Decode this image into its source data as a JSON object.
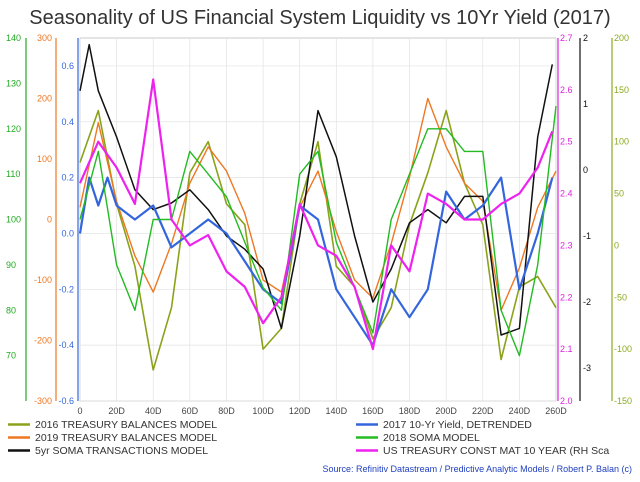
{
  "chart_data": {
    "type": "line",
    "title": "Seasonality of US Financial System Liquidity vs 10Yr Yield (2017)",
    "source": "Source: Refinitiv Datastream / Predictive Analytic Models / Robert P. Balan (c)",
    "x_axis": {
      "range": [
        0,
        260
      ],
      "ticks": [
        "0",
        "20D",
        "40D",
        "60D",
        "80D",
        "100D",
        "120D",
        "140D",
        "160D",
        "180D",
        "200D",
        "220D",
        "240D",
        "260D"
      ]
    },
    "axes": {
      "green_left": {
        "color": "#22aa22",
        "range": [
          60,
          140
        ],
        "ticks": [
          "140",
          "130",
          "120",
          "110",
          "100",
          "90",
          "80",
          "70"
        ]
      },
      "orange_left": {
        "color": "#ee7722",
        "range": [
          -300,
          300
        ],
        "ticks": [
          "300",
          "200",
          "100",
          "0",
          "-100",
          "-200",
          "-300"
        ]
      },
      "blue_left": {
        "color": "#3366dd",
        "range": [
          -0.6,
          0.7
        ],
        "ticks": [
          "0.6",
          "0.4",
          "0.2",
          "0.0",
          "-0.2",
          "-0.4",
          "-0.6"
        ]
      },
      "magenta_right": {
        "color": "#dd22dd",
        "range": [
          2.0,
          2.7
        ],
        "ticks": [
          "2.7",
          "2.6",
          "2.5",
          "2.4",
          "2.3",
          "2.2",
          "2.1",
          "2.0"
        ]
      },
      "black_right": {
        "color": "#111111",
        "range": [
          -3.5,
          2.0
        ],
        "ticks": [
          "2",
          "1",
          "0",
          "-1",
          "-2",
          "-3"
        ]
      },
      "olive_right": {
        "color": "#8aaa22",
        "range": [
          -150,
          200
        ],
        "ticks": [
          "200",
          "150",
          "100",
          "50",
          "0",
          "-50",
          "-100",
          "-150"
        ]
      }
    },
    "legend": [
      {
        "label": "2016 TREASURY BALANCES MODEL",
        "color": "#8aa21a"
      },
      {
        "label": "2019 TREASURY BALANCES MODEL",
        "color": "#ee7722"
      },
      {
        "label": "5yr SOMA TRANSACTIONS MODEL",
        "color": "#111111"
      },
      {
        "label": "2017 10-Yr Yield, DETRENDED",
        "color": "#3366dd"
      },
      {
        "label": "2018 SOMA MODEL",
        "color": "#22bb22"
      },
      {
        "label": "US TREASURY CONST MAT 10 YEAR (RH Sca",
        "color": "#ee22ee"
      }
    ],
    "series": [
      {
        "name": "2016 TREASURY BALANCES MODEL",
        "axis": "olive_right",
        "color": "#8aa21a",
        "width": 1.6,
        "x": [
          0,
          10,
          20,
          30,
          40,
          50,
          60,
          70,
          80,
          90,
          100,
          110,
          120,
          130,
          140,
          150,
          160,
          170,
          180,
          190,
          200,
          210,
          220,
          230,
          240,
          250,
          260
        ],
        "y": [
          80,
          130,
          40,
          -20,
          -120,
          -60,
          70,
          100,
          40,
          20,
          -100,
          -80,
          40,
          100,
          -20,
          -40,
          -90,
          -60,
          20,
          70,
          130,
          60,
          20,
          -110,
          -40,
          -30,
          -60
        ]
      },
      {
        "name": "2019 TREASURY BALANCES MODEL",
        "axis": "orange_left",
        "color": "#ee7722",
        "width": 1.4,
        "x": [
          0,
          10,
          20,
          30,
          40,
          50,
          60,
          70,
          80,
          90,
          100,
          110,
          120,
          130,
          140,
          150,
          160,
          170,
          180,
          190,
          200,
          210,
          220,
          230,
          240,
          250,
          260
        ],
        "y": [
          20,
          160,
          30,
          -60,
          -120,
          -40,
          60,
          120,
          80,
          10,
          -100,
          -120,
          20,
          80,
          -20,
          -100,
          -130,
          -40,
          70,
          200,
          120,
          60,
          30,
          -150,
          -80,
          20,
          80
        ]
      },
      {
        "name": "5yr SOMA TRANSACTIONS MODEL",
        "axis": "black_right",
        "color": "#111111",
        "width": 1.5,
        "x": [
          0,
          5,
          10,
          20,
          30,
          40,
          50,
          60,
          70,
          80,
          90,
          100,
          110,
          120,
          130,
          140,
          150,
          160,
          170,
          180,
          190,
          200,
          210,
          220,
          230,
          240,
          250,
          258
        ],
        "y": [
          1.2,
          1.9,
          1.2,
          0.5,
          -0.3,
          -0.6,
          -0.5,
          -0.3,
          -0.6,
          -1.0,
          -1.2,
          -1.5,
          -2.4,
          -1.0,
          0.9,
          0.2,
          -1.0,
          -2.0,
          -1.5,
          -0.8,
          -0.6,
          -0.8,
          -0.4,
          -0.4,
          -2.5,
          -2.4,
          0.5,
          1.6
        ]
      },
      {
        "name": "2017 10-Yr Yield, DETRENDED",
        "axis": "blue_left",
        "color": "#3366dd",
        "width": 2.2,
        "x": [
          0,
          5,
          10,
          15,
          20,
          30,
          40,
          50,
          60,
          70,
          80,
          90,
          100,
          110,
          120,
          130,
          140,
          150,
          160,
          170,
          180,
          190,
          200,
          210,
          220,
          230,
          240,
          250,
          258
        ],
        "y": [
          0.0,
          0.2,
          0.1,
          0.2,
          0.1,
          0.05,
          0.1,
          -0.05,
          0.0,
          0.05,
          0.0,
          -0.1,
          -0.2,
          -0.25,
          0.1,
          0.05,
          -0.2,
          -0.3,
          -0.4,
          -0.2,
          -0.3,
          -0.2,
          0.15,
          0.05,
          0.1,
          0.2,
          -0.2,
          0.0,
          0.2
        ]
      },
      {
        "name": "2018 SOMA MODEL",
        "axis": "green_left",
        "color": "#22bb22",
        "width": 1.4,
        "x": [
          0,
          10,
          20,
          30,
          40,
          50,
          60,
          70,
          80,
          90,
          100,
          110,
          120,
          130,
          140,
          150,
          160,
          170,
          180,
          190,
          200,
          210,
          220,
          230,
          240,
          250,
          260
        ],
        "y": [
          100,
          115,
          90,
          80,
          100,
          100,
          115,
          110,
          105,
          95,
          85,
          80,
          110,
          115,
          95,
          85,
          75,
          100,
          110,
          120,
          120,
          115,
          115,
          80,
          70,
          90,
          125
        ]
      },
      {
        "name": "US TREASURY CONST MAT 10 YEAR (RH Sca",
        "axis": "magenta_right",
        "color": "#ee22ee",
        "width": 2.2,
        "x": [
          0,
          10,
          20,
          30,
          40,
          50,
          60,
          70,
          80,
          90,
          100,
          110,
          120,
          130,
          140,
          150,
          160,
          170,
          180,
          190,
          200,
          210,
          220,
          230,
          240,
          250,
          258
        ],
        "y": [
          2.42,
          2.5,
          2.45,
          2.38,
          2.62,
          2.35,
          2.3,
          2.32,
          2.25,
          2.22,
          2.15,
          2.2,
          2.38,
          2.3,
          2.28,
          2.22,
          2.1,
          2.3,
          2.25,
          2.4,
          2.38,
          2.35,
          2.35,
          2.38,
          2.4,
          2.45,
          2.52
        ]
      }
    ]
  }
}
